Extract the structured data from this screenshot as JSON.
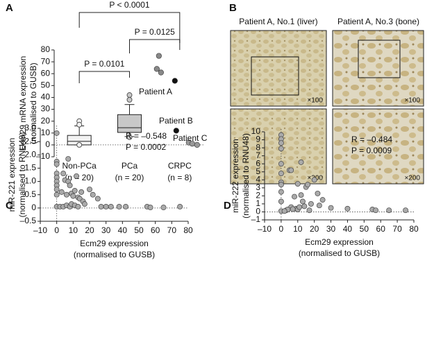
{
  "panel_labels": [
    "A",
    "B",
    "C",
    "D"
  ],
  "micrographs": {
    "titles": [
      "Patient A, No.1 (liver)",
      "Patient A, No.3 (bone)"
    ],
    "magnifications": [
      "×100",
      "×100",
      "×200",
      "×200"
    ]
  },
  "chart_data": [
    {
      "type": "box",
      "y_label": [
        "Ecm29 mRNA expression",
        "(normalised to GUSB)"
      ],
      "categories": [
        "Non-PCa",
        "PCa",
        "CRPC"
      ],
      "category_counts": [
        "(n = 20)",
        "(n = 20)",
        "(n = 8)"
      ],
      "boxes": [
        {
          "whisker_low": 0,
          "q1": 0,
          "median": 3,
          "q3": 8,
          "whisker_high": 16,
          "outliers": [
            20,
            17,
            0
          ],
          "fill": "#f2f2f2"
        },
        {
          "whisker_low": 7,
          "q1": 10.5,
          "median": 14.5,
          "q3": 25.5,
          "whisker_high": 34,
          "outliers": [
            42,
            38,
            6.5
          ],
          "fill": "#c8c8c8"
        },
        {
          "values": [
            75,
            64,
            61,
            54,
            12,
            2,
            1,
            0
          ],
          "colors": [
            "#888888",
            "#888888",
            "#888888",
            "#111111",
            "#111111",
            "#999999",
            "#999999",
            "#999999"
          ]
        }
      ],
      "ylim": [
        -10,
        80
      ],
      "yticks": [
        {
          "value": -10,
          "label": "–10"
        },
        0,
        10,
        20,
        30,
        40,
        50,
        60,
        70,
        80
      ],
      "annotations": [
        "Patient A",
        "Patient B",
        "Patient C"
      ],
      "comparisons": [
        "P = 0.0101",
        "P = 0.0125",
        "P < 0.0001"
      ]
    },
    {
      "type": "scatter",
      "x_label": [
        "Ecm29 expression",
        "(normalised to GUSB)"
      ],
      "y_label": [
        "miR-221 expression",
        "(normalised to RNU48)"
      ],
      "x": [
        0,
        0,
        0,
        0,
        0,
        0,
        0,
        0,
        0,
        0,
        7,
        4,
        5,
        7,
        8,
        3,
        6,
        9,
        10,
        11,
        12,
        13,
        14,
        15,
        16,
        17,
        20,
        22,
        25,
        27,
        30,
        33,
        38,
        42,
        55,
        57,
        65,
        75,
        2,
        4,
        6,
        8,
        9,
        11,
        13
      ],
      "y": [
        2.82,
        1.75,
        1.65,
        1.3,
        1.15,
        1.0,
        0.85,
        0.7,
        0.5,
        0.05,
        1.85,
        1.3,
        1.05,
        1.0,
        0.85,
        0.6,
        0.5,
        0.55,
        0.45,
        0.65,
        1.2,
        0.4,
        0.35,
        0.6,
        0.25,
        0.15,
        0.7,
        0.5,
        0.35,
        0.05,
        0.05,
        0.05,
        0.05,
        0.05,
        0.05,
        0.02,
        0.02,
        0.05,
        0.05,
        0.05,
        0.1,
        0.05,
        0.15,
        0.1,
        0.05
      ],
      "color": "#aaaaaa",
      "xlim": [
        -10,
        80
      ],
      "xticks": [
        {
          "value": -10,
          "label": "–10"
        },
        0,
        10,
        20,
        30,
        40,
        50,
        60,
        70,
        80
      ],
      "ylim": [
        -0.5,
        3.0
      ],
      "yticks": [
        {
          "value": -0.5,
          "label": "–0.5"
        },
        0,
        0.5,
        {
          "value": 1,
          "label": "1.0"
        },
        1.5,
        {
          "value": 2,
          "label": "2.0"
        },
        2.5,
        {
          "value": 3,
          "label": "3.0"
        }
      ],
      "annotations": [
        "R = –0.548",
        "P = 0.0002"
      ]
    },
    {
      "type": "scatter",
      "x_label": [
        "Ecm29 expression",
        "(normalised to GUSB)"
      ],
      "y_label": [
        "miR-222 expression",
        "(normalised to RNU48)"
      ],
      "x": [
        0,
        0,
        0,
        0,
        0,
        0,
        0,
        0,
        0,
        0,
        0,
        5,
        6,
        12,
        10,
        12,
        15,
        16,
        20,
        22,
        25,
        8,
        13,
        18,
        14,
        6,
        9,
        10,
        11,
        3,
        4,
        7,
        17,
        23,
        30,
        40,
        55,
        57,
        65,
        75,
        2
      ],
      "y": [
        9.6,
        9.1,
        8.6,
        7.9,
        6.0,
        4.8,
        3.7,
        3.4,
        2.5,
        1.3,
        0.1,
        5.2,
        5.2,
        6.2,
        3.5,
        2.1,
        3.1,
        3.4,
        4.0,
        2.3,
        1.5,
        1.9,
        1.3,
        1.0,
        0.7,
        0.6,
        0.4,
        0.3,
        0.6,
        0.2,
        0.3,
        0.35,
        0.2,
        0.8,
        0.5,
        0.4,
        0.3,
        0.2,
        0.2,
        0.2,
        0.1
      ],
      "color": "#aaaaaa",
      "xlim": [
        -10,
        80
      ],
      "xticks": [
        {
          "value": -10,
          "label": "–10"
        },
        0,
        10,
        20,
        30,
        40,
        50,
        60,
        70,
        80
      ],
      "ylim": [
        -1,
        10
      ],
      "yticks": [
        {
          "value": -1,
          "label": "–1"
        },
        0,
        1,
        2,
        3,
        4,
        5,
        6,
        7,
        8,
        9,
        10
      ],
      "annotations": [
        "R = –0.484",
        "P = 0.0009"
      ]
    }
  ]
}
